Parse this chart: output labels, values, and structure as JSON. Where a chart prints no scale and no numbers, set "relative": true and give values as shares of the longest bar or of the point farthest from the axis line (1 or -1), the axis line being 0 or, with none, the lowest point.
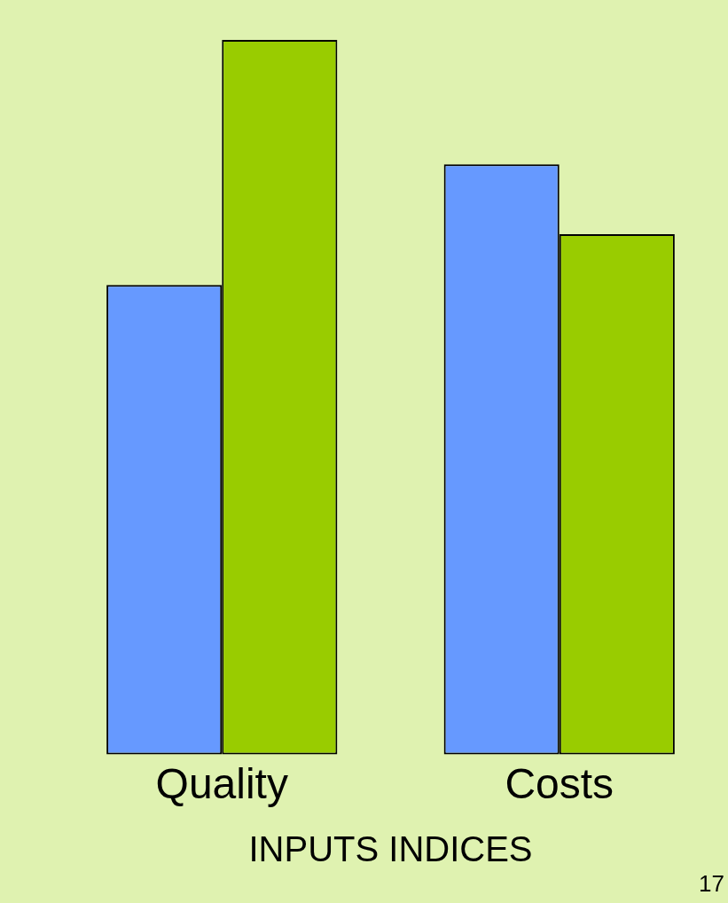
{
  "chart_data": {
    "type": "bar",
    "relative": true,
    "xlabel": "INPUTS INDICES",
    "categories": [
      "Quality",
      "Costs"
    ],
    "series": [
      {
        "color": "#6699ff",
        "values": [
          0.657,
          0.826
        ]
      },
      {
        "color": "#99cc00",
        "values": [
          1,
          0.728
        ]
      }
    ],
    "annotations": [
      "17"
    ],
    "grid": false,
    "legend": false
  }
}
